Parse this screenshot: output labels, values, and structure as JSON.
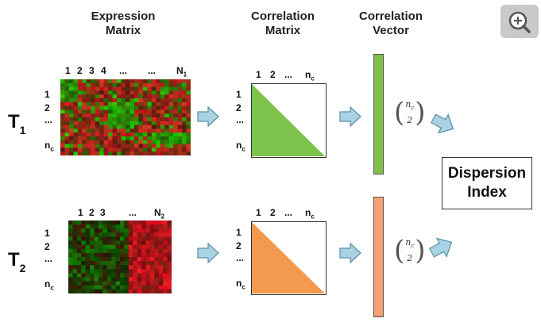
{
  "headers": {
    "expression": [
      "Expression",
      "Matrix"
    ],
    "correlation_matrix": [
      "Correlation",
      "Matrix"
    ],
    "correlation_vector": [
      "Correlation",
      "Vector"
    ]
  },
  "rows": [
    {
      "label_main": "T",
      "label_sub": "1",
      "matrix_cols": [
        "1",
        "2",
        "3",
        "4",
        "...",
        "..."
      ],
      "matrix_cols_last": "N",
      "matrix_cols_last_sub": "1",
      "matrix_rows": [
        "1",
        "2",
        "..."
      ],
      "matrix_rows_last": "n",
      "matrix_rows_last_sub": "c",
      "corr_cols": [
        "1",
        "2",
        "..."
      ],
      "corr_cols_last": "n",
      "corr_cols_last_sub": "c",
      "corr_rows": [
        "1",
        "2",
        "..."
      ],
      "corr_rows_last": "n",
      "corr_rows_last_sub": "c",
      "binom_top": "n",
      "binom_top_sub": "c",
      "binom_bottom": "2",
      "fill_color": "#7dc24a",
      "vector_color": "#80c04a"
    },
    {
      "label_main": "T",
      "label_sub": "2",
      "matrix_cols": [
        "1",
        "2",
        "3",
        "..."
      ],
      "matrix_cols_last": "N",
      "matrix_cols_last_sub": "2",
      "matrix_rows": [
        "1",
        "2",
        "..."
      ],
      "matrix_rows_last": "n",
      "matrix_rows_last_sub": "c",
      "corr_cols": [
        "1",
        "2",
        "..."
      ],
      "corr_cols_last": "n",
      "corr_cols_last_sub": "c",
      "corr_rows": [
        "1",
        "2",
        "..."
      ],
      "corr_rows_last": "n",
      "corr_rows_last_sub": "c",
      "binom_top": "n",
      "binom_top_sub": "c",
      "binom_bottom": "2",
      "fill_color": "#f39a4e",
      "vector_color": "#f4a070"
    }
  ],
  "output": [
    "Dispersion",
    "Index"
  ],
  "colors": {
    "arrow_fill": "#a9d3e4",
    "arrow_stroke": "#5a8ea3"
  },
  "zoom_icon": "zoom-in-icon"
}
